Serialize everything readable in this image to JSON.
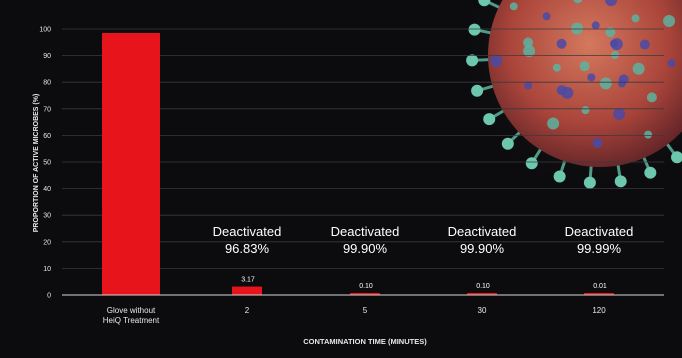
{
  "chart_data": {
    "type": "bar",
    "title": "",
    "ylabel": "PROPORTION OF ACTIVE MICROBES (%)",
    "xlabel": "CONTAMINATION TIME (MINUTES)",
    "ylim": [
      0,
      100
    ],
    "yticks": [
      0,
      10,
      20,
      30,
      40,
      50,
      60,
      70,
      80,
      90,
      100
    ],
    "categories": [
      [
        "Glove without",
        "HeiQ Treatment"
      ],
      [
        "2"
      ],
      [
        "5"
      ],
      [
        "30"
      ],
      [
        "120"
      ]
    ],
    "values": [
      98.5,
      3.17,
      0.1,
      0.1,
      0.01
    ],
    "data_labels": [
      "",
      "3.17",
      "0.10",
      "0.10",
      "0.01"
    ],
    "annotations": [
      {
        "category_index": 1,
        "line1": "Deactivated",
        "line2": "96.83%"
      },
      {
        "category_index": 2,
        "line1": "Deactivated",
        "line2": "99.90%"
      },
      {
        "category_index": 3,
        "line1": "Deactivated",
        "line2": "99.90%"
      },
      {
        "category_index": 4,
        "line1": "Deactivated",
        "line2": "99.99%"
      }
    ],
    "bar_color": "#e8141c",
    "grid": true,
    "legend": "none"
  }
}
